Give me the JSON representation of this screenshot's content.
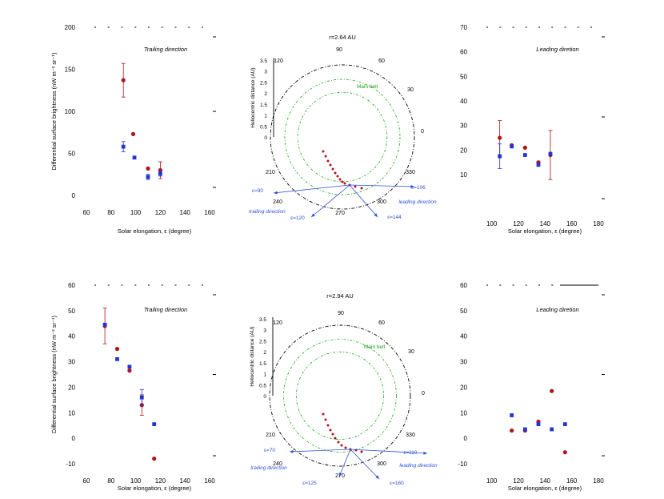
{
  "colors": {
    "red": "#b3121a",
    "blue": "#2134d6",
    "green": "#20a51c",
    "arrow": "#2f4fd8",
    "axis": "#000000"
  },
  "chart_data": [
    {
      "type": "scatter",
      "title": "Trailing direction",
      "xlabel": "Solar elongation, ε (degree)",
      "ylabel": "Differential surface brightness (nW m⁻² sr⁻¹)",
      "xlim": [
        60,
        160
      ],
      "ylim": [
        0,
        200
      ],
      "xticks": [
        "60",
        "80",
        "100",
        "120",
        "140",
        "160"
      ],
      "yticks": [
        "0",
        "50",
        "100",
        "150",
        "200"
      ],
      "series": [
        {
          "name": "red",
          "color": "red",
          "marker": "circle",
          "points": [
            {
              "x": 90,
              "y": 137,
              "err": 20
            },
            {
              "x": 98,
              "y": 73,
              "err": 0
            },
            {
              "x": 110,
              "y": 32,
              "err": 0
            },
            {
              "x": 120,
              "y": 30,
              "err": 10
            }
          ]
        },
        {
          "name": "blue",
          "color": "blue",
          "marker": "square",
          "points": [
            {
              "x": 90,
              "y": 58,
              "err": 6
            },
            {
              "x": 99,
              "y": 45,
              "err": 0
            },
            {
              "x": 110,
              "y": 22,
              "err": 3
            },
            {
              "x": 120,
              "y": 26,
              "err": 3
            }
          ]
        }
      ]
    },
    {
      "type": "polar",
      "title": "r=2.64 AU",
      "rlabel": "Heliocentric distance (AU)",
      "rticks": [
        "0",
        "0.5",
        "1",
        "1.5",
        "2",
        "2.5",
        "3",
        "3.5"
      ],
      "angle_labels": [
        "90",
        "60",
        "30",
        "0",
        "330",
        "300",
        "270",
        "240",
        "210",
        "120"
      ],
      "belt_label": "Main belt",
      "arrows": [
        {
          "label": "ε=90",
          "side": "left"
        },
        {
          "label": "ε=106",
          "side": "right"
        },
        {
          "label": "ε=120",
          "side": "down-left"
        },
        {
          "label": "ε=144",
          "side": "down-right"
        }
      ],
      "annotations": [
        "trailing direction",
        "leading direction"
      ]
    },
    {
      "type": "scatter",
      "title": "Leading diretion",
      "xlabel": "Solar elongation, ε (degree)",
      "ylabel": "",
      "xlim": [
        90,
        180
      ],
      "ylim": [
        -3,
        70
      ],
      "xticks": [
        "100",
        "120",
        "140",
        "160",
        "180"
      ],
      "yticks": [
        "10",
        "20",
        "30",
        "40",
        "50",
        "60",
        "70"
      ],
      "series": [
        {
          "name": "red",
          "color": "red",
          "marker": "circle",
          "points": [
            {
              "x": 106,
              "y": 25,
              "err": 7
            },
            {
              "x": 115,
              "y": 22,
              "err": 0
            },
            {
              "x": 125,
              "y": 21,
              "err": 0
            },
            {
              "x": 135,
              "y": 15,
              "err": 0
            },
            {
              "x": 144,
              "y": 18,
              "err": 10
            }
          ]
        },
        {
          "name": "blue",
          "color": "blue",
          "marker": "square",
          "points": [
            {
              "x": 106,
              "y": 17.5,
              "err": 5
            },
            {
              "x": 115,
              "y": 21.5,
              "err": 0
            },
            {
              "x": 125,
              "y": 18,
              "err": 0
            },
            {
              "x": 135,
              "y": 14,
              "err": 0
            },
            {
              "x": 144,
              "y": 18.5,
              "err": 0
            }
          ]
        }
      ]
    },
    {
      "type": "scatter",
      "title": "Trailing direction",
      "xlabel": "Solar elongation, ε (degree)",
      "ylabel": "Differential surface brightness (nW m⁻² sr⁻¹)",
      "xlim": [
        60,
        160
      ],
      "ylim": [
        -10,
        60
      ],
      "xticks": [
        "60",
        "80",
        "100",
        "120",
        "140",
        "160"
      ],
      "yticks": [
        "-10",
        "0",
        "10",
        "20",
        "30",
        "40",
        "50",
        "60"
      ],
      "series": [
        {
          "name": "red",
          "color": "red",
          "marker": "circle",
          "points": [
            {
              "x": 75,
              "y": 44,
              "err": 7
            },
            {
              "x": 85,
              "y": 35,
              "err": 0
            },
            {
              "x": 95,
              "y": 26.5,
              "err": 0
            },
            {
              "x": 105,
              "y": 13,
              "err": 4
            },
            {
              "x": 115,
              "y": -8,
              "err": 0
            }
          ]
        },
        {
          "name": "blue",
          "color": "blue",
          "marker": "square",
          "points": [
            {
              "x": 75,
              "y": 44.5,
              "err": 0
            },
            {
              "x": 85,
              "y": 31,
              "err": 0
            },
            {
              "x": 95,
              "y": 28,
              "err": 0
            },
            {
              "x": 105,
              "y": 16,
              "err": 3
            },
            {
              "x": 115,
              "y": 5.5,
              "err": 0
            }
          ]
        }
      ]
    },
    {
      "type": "polar",
      "title": "r=2.94 AU",
      "rlabel": "Heliocentric distance (AU)",
      "rticks": [
        "0",
        "0.5",
        "1",
        "1.5",
        "2",
        "2.5",
        "3",
        "3.5"
      ],
      "angle_labels": [
        "90",
        "60",
        "30",
        "0",
        "330",
        "300",
        "270",
        "240",
        "210",
        "120"
      ],
      "belt_label": "Main belt",
      "arrows": [
        {
          "label": "ε=70",
          "side": "left"
        },
        {
          "label": "ε=110",
          "side": "right"
        },
        {
          "label": "ε=125",
          "side": "down-left"
        },
        {
          "label": "ε=160",
          "side": "down-right"
        }
      ],
      "annotations": [
        "trailing direction",
        "leading direction"
      ]
    },
    {
      "type": "scatter",
      "title": "Leading diretion",
      "xlabel": "Solar elongation, ε (degree)",
      "ylabel": "",
      "xlim": [
        90,
        180
      ],
      "ylim": [
        -10,
        60
      ],
      "xticks": [
        "100",
        "120",
        "140",
        "160",
        "180"
      ],
      "yticks": [
        "-10",
        "0",
        "10",
        "20",
        "30",
        "40",
        "50",
        "60"
      ],
      "series": [
        {
          "name": "red",
          "color": "red",
          "marker": "circle",
          "points": [
            {
              "x": 115,
              "y": 3,
              "err": 0
            },
            {
              "x": 125,
              "y": 3,
              "err": 0
            },
            {
              "x": 135,
              "y": 6.5,
              "err": 0
            },
            {
              "x": 145,
              "y": 18.5,
              "err": 0
            },
            {
              "x": 155,
              "y": -5.5,
              "err": 0
            }
          ]
        },
        {
          "name": "blue",
          "color": "blue",
          "marker": "square",
          "points": [
            {
              "x": 115,
              "y": 9,
              "err": 0
            },
            {
              "x": 125,
              "y": 3.5,
              "err": 0
            },
            {
              "x": 135,
              "y": 5.5,
              "err": 0
            },
            {
              "x": 145,
              "y": 3.5,
              "err": 0
            },
            {
              "x": 155,
              "y": 5.5,
              "err": 0
            }
          ]
        }
      ]
    }
  ]
}
